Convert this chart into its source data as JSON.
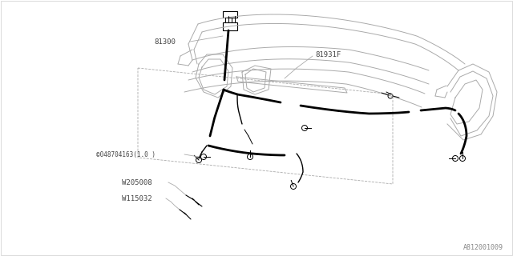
{
  "bg_color": "#ffffff",
  "line_color": "#000000",
  "thin_line_color": "#aaaaaa",
  "dash_line_color": "#aaaaaa",
  "label_81300": "81300",
  "label_81931F": "81931F",
  "label_S": "©048704163(1.0 )",
  "label_W205008": "W205008",
  "label_W115032": "W115032",
  "label_footer": "A812001009",
  "label_fontsize": 6.5,
  "footer_fontsize": 6
}
